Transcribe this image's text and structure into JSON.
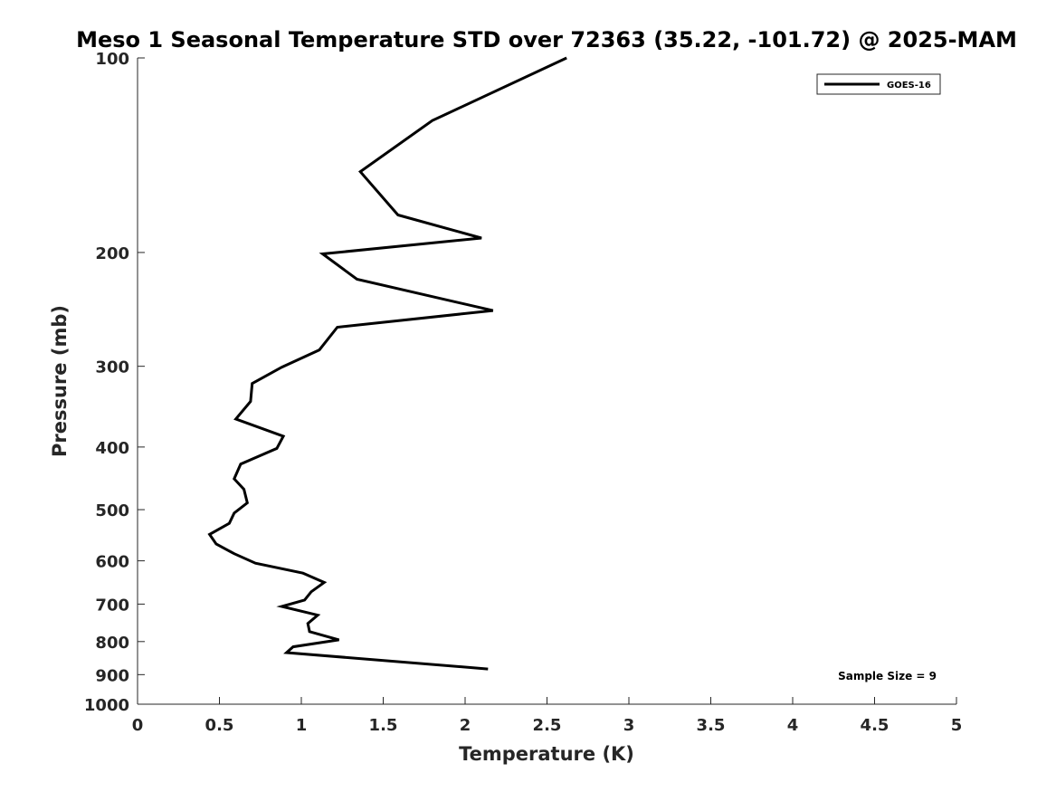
{
  "chart_data": {
    "type": "line",
    "title": "Meso 1 Seasonal Temperature STD over 72363 (35.22, -101.72) @ 2025-MAM",
    "xlabel": "Temperature (K)",
    "ylabel": "Pressure (mb)",
    "xlim": [
      0,
      5
    ],
    "ylim": [
      1000,
      100
    ],
    "y_scale": "log",
    "y_reversed": true,
    "grid": false,
    "legend_position": "top-right",
    "x_ticks": [
      {
        "value": 0,
        "label": "0"
      },
      {
        "value": 0.5,
        "label": "0.5"
      },
      {
        "value": 1,
        "label": "1"
      },
      {
        "value": 1.5,
        "label": "1.5"
      },
      {
        "value": 2,
        "label": "2"
      },
      {
        "value": 2.5,
        "label": "2.5"
      },
      {
        "value": 3,
        "label": "3"
      },
      {
        "value": 3.5,
        "label": "3.5"
      },
      {
        "value": 4,
        "label": "4"
      },
      {
        "value": 4.5,
        "label": "4.5"
      },
      {
        "value": 5,
        "label": "5"
      }
    ],
    "y_ticks": [
      {
        "value": 100,
        "label": "100"
      },
      {
        "value": 200,
        "label": "200"
      },
      {
        "value": 300,
        "label": "300"
      },
      {
        "value": 400,
        "label": "400"
      },
      {
        "value": 500,
        "label": "500"
      },
      {
        "value": 600,
        "label": "600"
      },
      {
        "value": 700,
        "label": "700"
      },
      {
        "value": 800,
        "label": "800"
      },
      {
        "value": 900,
        "label": "900"
      },
      {
        "value": 1000,
        "label": "1000"
      }
    ],
    "series": [
      {
        "name": "GOES-16",
        "color": "#000000",
        "points": [
          {
            "x": 2.62,
            "p": 100
          },
          {
            "x": 1.8,
            "p": 125
          },
          {
            "x": 1.36,
            "p": 150
          },
          {
            "x": 1.59,
            "p": 175
          },
          {
            "x": 2.1,
            "p": 190
          },
          {
            "x": 1.13,
            "p": 201
          },
          {
            "x": 1.34,
            "p": 220
          },
          {
            "x": 2.17,
            "p": 246
          },
          {
            "x": 1.22,
            "p": 261
          },
          {
            "x": 1.11,
            "p": 283
          },
          {
            "x": 0.88,
            "p": 301
          },
          {
            "x": 0.7,
            "p": 319
          },
          {
            "x": 0.69,
            "p": 340
          },
          {
            "x": 0.6,
            "p": 362
          },
          {
            "x": 0.89,
            "p": 385
          },
          {
            "x": 0.85,
            "p": 402
          },
          {
            "x": 0.63,
            "p": 425
          },
          {
            "x": 0.59,
            "p": 448
          },
          {
            "x": 0.65,
            "p": 465
          },
          {
            "x": 0.67,
            "p": 488
          },
          {
            "x": 0.59,
            "p": 506
          },
          {
            "x": 0.56,
            "p": 525
          },
          {
            "x": 0.44,
            "p": 546
          },
          {
            "x": 0.48,
            "p": 565
          },
          {
            "x": 0.59,
            "p": 585
          },
          {
            "x": 0.72,
            "p": 605
          },
          {
            "x": 1.01,
            "p": 627
          },
          {
            "x": 1.14,
            "p": 648
          },
          {
            "x": 1.06,
            "p": 670
          },
          {
            "x": 1.02,
            "p": 690
          },
          {
            "x": 0.88,
            "p": 706
          },
          {
            "x": 1.1,
            "p": 728
          },
          {
            "x": 1.04,
            "p": 750
          },
          {
            "x": 1.05,
            "p": 772
          },
          {
            "x": 1.23,
            "p": 795
          },
          {
            "x": 0.95,
            "p": 815
          },
          {
            "x": 0.91,
            "p": 832
          },
          {
            "x": 2.14,
            "p": 882
          }
        ]
      }
    ],
    "annotations": [
      {
        "text": "Sample Size = 9",
        "position": "bottom-right"
      }
    ]
  }
}
